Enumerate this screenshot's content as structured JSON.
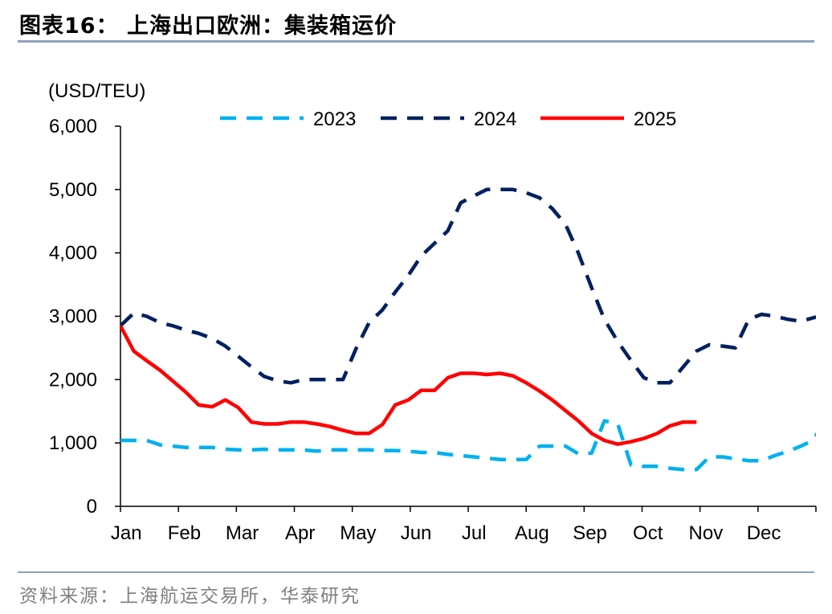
{
  "header": {
    "title": "图表16： 上海出口欧洲：集装箱运价"
  },
  "footer": {
    "source": "资料来源：上海航运交易所，华泰研究"
  },
  "chart_data": {
    "type": "line",
    "title": "图表16： 上海出口欧洲：集装箱运价",
    "ylabel": "(USD/TEU)",
    "xlabel": "",
    "ylim": [
      0,
      6000
    ],
    "yticks": [
      0,
      1000,
      2000,
      3000,
      4000,
      5000,
      6000
    ],
    "ytick_labels": [
      "0",
      "1,000",
      "2,000",
      "3,000",
      "4,000",
      "5,000",
      "6,000"
    ],
    "x_unit": "month",
    "xlim": [
      0,
      12
    ],
    "categories": [
      "Jan",
      "Feb",
      "Mar",
      "Apr",
      "May",
      "Jun",
      "Jul",
      "Aug",
      "Sep",
      "Oct",
      "Nov",
      "Dec"
    ],
    "grid": false,
    "legend_position": "top",
    "series": [
      {
        "name": "2023",
        "color": "#00b0f0",
        "dash": "dashed",
        "x": [
          0.0,
          0.23,
          0.45,
          0.68,
          0.9,
          1.13,
          1.35,
          1.58,
          1.81,
          2.03,
          2.26,
          2.48,
          2.71,
          2.94,
          3.16,
          3.39,
          3.61,
          3.84,
          4.06,
          4.29,
          4.52,
          4.74,
          4.97,
          5.19,
          5.42,
          5.65,
          5.87,
          6.1,
          6.32,
          6.55,
          6.77,
          7.0,
          7.23,
          7.45,
          7.68,
          7.9,
          8.13,
          8.35,
          8.58,
          8.81,
          9.03,
          9.26,
          9.48,
          9.71,
          9.94,
          10.16,
          10.39,
          10.61,
          10.84,
          11.06,
          11.29,
          11.52,
          11.74,
          11.97,
          12.19
        ],
        "y": [
          1040,
          1040,
          1040,
          970,
          950,
          930,
          930,
          930,
          900,
          890,
          890,
          900,
          890,
          890,
          890,
          870,
          890,
          890,
          890,
          890,
          880,
          880,
          870,
          850,
          850,
          820,
          800,
          780,
          760,
          740,
          740,
          740,
          950,
          950,
          950,
          830,
          840,
          1350,
          1300,
          650,
          630,
          630,
          600,
          580,
          580,
          780,
          780,
          750,
          720,
          720,
          800,
          870,
          950,
          1050,
          1480
        ]
      },
      {
        "name": "2024",
        "color": "#002060",
        "dash": "dashed",
        "x": [
          0.0,
          0.23,
          0.45,
          0.68,
          0.9,
          1.13,
          1.35,
          1.58,
          1.81,
          2.03,
          2.26,
          2.48,
          2.71,
          2.94,
          3.16,
          3.39,
          3.61,
          3.84,
          4.06,
          4.29,
          4.52,
          4.74,
          4.97,
          5.19,
          5.42,
          5.65,
          5.87,
          6.1,
          6.32,
          6.55,
          6.77,
          7.0,
          7.23,
          7.45,
          7.68,
          7.9,
          8.13,
          8.35,
          8.58,
          8.81,
          9.03,
          9.26,
          9.48,
          9.71,
          9.94,
          10.16,
          10.39,
          10.61,
          10.84,
          11.06,
          11.29,
          11.52,
          11.74,
          11.97,
          12.19
        ],
        "y": [
          2850,
          3050,
          3000,
          2900,
          2850,
          2780,
          2730,
          2650,
          2530,
          2370,
          2200,
          2050,
          1980,
          1950,
          2000,
          2000,
          2000,
          2000,
          2480,
          2900,
          3100,
          3380,
          3650,
          3950,
          4150,
          4350,
          4790,
          4900,
          5000,
          5000,
          5000,
          4950,
          4870,
          4700,
          4450,
          4000,
          3450,
          2950,
          2600,
          2300,
          2030,
          1950,
          1950,
          2200,
          2450,
          2550,
          2530,
          2500,
          2950,
          3030,
          3000,
          2950,
          2920,
          2980,
          3020
        ]
      },
      {
        "name": "2025",
        "color": "#ff0000",
        "dash": "solid",
        "x": [
          0.0,
          0.23,
          0.45,
          0.68,
          0.9,
          1.13,
          1.35,
          1.58,
          1.81,
          2.03,
          2.26,
          2.48,
          2.71,
          2.94,
          3.16,
          3.39,
          3.61,
          3.84,
          4.06,
          4.29,
          4.52,
          4.74,
          4.97,
          5.19,
          5.42,
          5.65,
          5.87,
          6.1,
          6.32,
          6.55,
          6.77,
          7.0,
          7.23,
          7.45,
          7.68,
          7.9,
          8.13,
          8.35,
          8.58,
          8.81,
          9.03,
          9.26,
          9.48,
          9.71,
          9.94
        ],
        "y": [
          2850,
          2450,
          2300,
          2150,
          1980,
          1800,
          1600,
          1570,
          1680,
          1560,
          1330,
          1300,
          1300,
          1330,
          1330,
          1300,
          1260,
          1200,
          1150,
          1150,
          1290,
          1600,
          1680,
          1830,
          1830,
          2030,
          2100,
          2100,
          2080,
          2100,
          2060,
          1950,
          1820,
          1680,
          1510,
          1350,
          1150,
          1040,
          980,
          1020,
          1070,
          1150,
          1270,
          1330,
          1330
        ]
      }
    ]
  }
}
